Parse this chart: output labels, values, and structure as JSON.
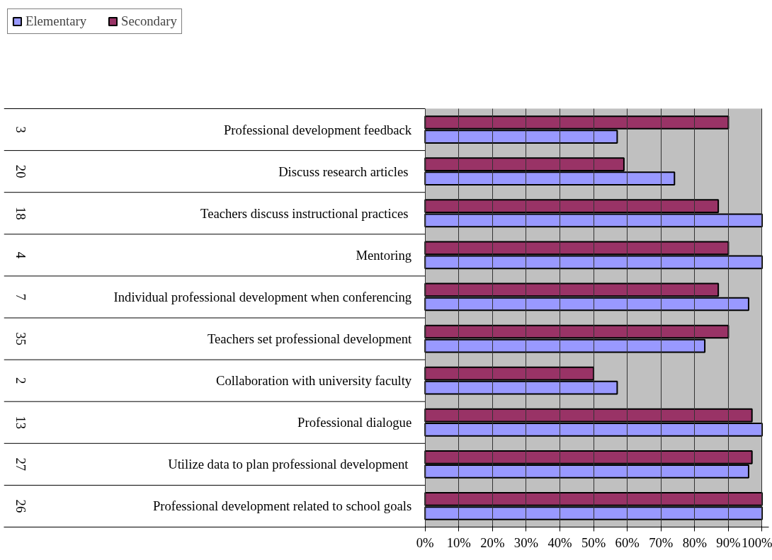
{
  "chart_data": {
    "type": "bar",
    "orientation": "horizontal",
    "categories": [
      "Professional development feedback",
      "Discuss research articles ",
      "Teachers discuss instructional practices ",
      "Mentoring",
      "Individual professional development when conferencing",
      "Teachers set professional development",
      "Collaboration with university faculty",
      "Professional dialogue",
      "Utilize data to plan professional development ",
      "Professional development related to school goals"
    ],
    "annotations": [
      "3",
      "20",
      "18",
      "4",
      "7",
      "35",
      "2",
      "13",
      "27",
      "26"
    ],
    "series": [
      {
        "name": "Elementary",
        "color": "#9999ff",
        "values": [
          57,
          74,
          100,
          100,
          96,
          83,
          57,
          100,
          96,
          100
        ]
      },
      {
        "name": "Secondary",
        "color": "#993366",
        "values": [
          90,
          59,
          87,
          90,
          87,
          90,
          50,
          97,
          97,
          100
        ]
      }
    ],
    "xlim": [
      0,
      100
    ],
    "xticks": [
      {
        "value": 0,
        "label": "0%"
      },
      {
        "value": 10,
        "label": "10%"
      },
      {
        "value": 20,
        "label": "20%"
      },
      {
        "value": 30,
        "label": "30%"
      },
      {
        "value": 40,
        "label": "40%"
      },
      {
        "value": 50,
        "label": "50%"
      },
      {
        "value": 60,
        "label": "60%"
      },
      {
        "value": 70,
        "label": "70%"
      },
      {
        "value": 80,
        "label": "80%"
      },
      {
        "value": 90,
        "label": "90%"
      },
      {
        "value": 100,
        "label": "100%"
      }
    ],
    "grid": "x",
    "legend": "top left"
  }
}
